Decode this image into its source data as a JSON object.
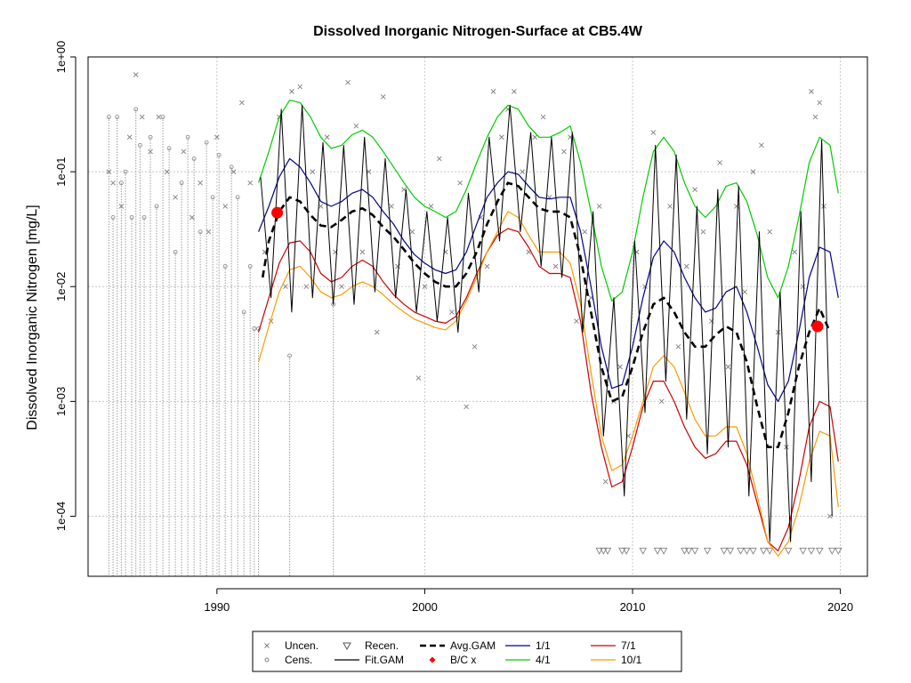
{
  "chart_data": {
    "type": "line",
    "title": "Dissolved Inorganic Nitrogen-Surface at CB5.4W",
    "xlabel": "",
    "ylabel": "Dissolved Inorganic Nitrogen [mg/L]",
    "y_scale": "log",
    "xlim": [
      1983.8,
      2021.3
    ],
    "ylim": [
      3e-05,
      1
    ],
    "grid": true,
    "x_ticks": [
      1990,
      2000,
      2010,
      2020
    ],
    "x_tick_labels": [
      "1990",
      "2000",
      "2010",
      "2020"
    ],
    "y_ticks": [
      1,
      0.1,
      0.01,
      0.001,
      0.0001
    ],
    "y_tick_labels": [
      "1e+00",
      "1e-01",
      "1e-02",
      "1e-03",
      "1e-04"
    ],
    "colors": {
      "uncen": "#808080",
      "cens": "#808080",
      "fit_gam": "#000000",
      "avg_gam": "#000000",
      "bc": "#ff0000",
      "d1_1": "#00008b",
      "d4_1": "#00cc00",
      "d7_1": "#cc0000",
      "d10_1": "#ff9900"
    },
    "legend": {
      "placement": "bottom",
      "entries": [
        {
          "key": "uncen",
          "label": "Uncen.",
          "symbol": "x"
        },
        {
          "key": "recen",
          "label": "Recen.",
          "symbol": "triangle-down"
        },
        {
          "key": "avg",
          "label": "Avg.GAM",
          "symbol": "dashed-line"
        },
        {
          "key": "d1_1",
          "label": "1/1",
          "symbol": "line"
        },
        {
          "key": "d7_1",
          "label": "7/1",
          "symbol": "line"
        },
        {
          "key": "cens",
          "label": "Cens.",
          "symbol": "circle"
        },
        {
          "key": "fit",
          "label": "Fit.GAM",
          "symbol": "line"
        },
        {
          "key": "bc",
          "label": "B/C x",
          "symbol": "diamond"
        },
        {
          "key": "d4_1",
          "label": "4/1",
          "symbol": "line"
        },
        {
          "key": "d10_1",
          "label": "10/1",
          "symbol": "line"
        }
      ]
    },
    "series": [
      {
        "name": "4/1",
        "key": "d4_1",
        "x": [
          1992.0,
          1992.5,
          1993.0,
          1993.5,
          1994.0,
          1994.5,
          1995.0,
          1995.5,
          1996.0,
          1996.5,
          1997.0,
          1997.5,
          1998.0,
          1998.5,
          1999.0,
          1999.5,
          2000.0,
          2000.5,
          2001.0,
          2001.5,
          2002.0,
          2002.5,
          2003.0,
          2003.5,
          2004.0,
          2004.5,
          2005.0,
          2005.5,
          2006.0,
          2006.5,
          2007.0,
          2007.5,
          2008.0,
          2008.5,
          2009.0,
          2009.5,
          2010.0,
          2010.5,
          2011.0,
          2011.5,
          2012.0,
          2012.5,
          2013.0,
          2013.5,
          2014.0,
          2014.5,
          2015.0,
          2015.5,
          2016.0,
          2016.5,
          2017.0,
          2017.5,
          2018.0,
          2018.5,
          2019.0,
          2019.5,
          2019.9
        ],
        "y": [
          0.08,
          0.15,
          0.3,
          0.42,
          0.4,
          0.3,
          0.2,
          0.16,
          0.17,
          0.21,
          0.23,
          0.2,
          0.15,
          0.11,
          0.08,
          0.06,
          0.05,
          0.045,
          0.04,
          0.045,
          0.07,
          0.12,
          0.2,
          0.3,
          0.38,
          0.35,
          0.25,
          0.2,
          0.2,
          0.22,
          0.25,
          0.12,
          0.045,
          0.015,
          0.0075,
          0.009,
          0.02,
          0.06,
          0.15,
          0.2,
          0.15,
          0.08,
          0.05,
          0.04,
          0.05,
          0.075,
          0.08,
          0.055,
          0.028,
          0.012,
          0.008,
          0.015,
          0.04,
          0.12,
          0.2,
          0.17,
          0.065
        ]
      },
      {
        "name": "1/1",
        "key": "d1_1",
        "x": [
          1992.0,
          1992.5,
          1993.0,
          1993.5,
          1994.0,
          1994.5,
          1995.0,
          1995.5,
          1996.0,
          1996.5,
          1997.0,
          1997.5,
          1998.0,
          1998.5,
          1999.0,
          1999.5,
          2000.0,
          2000.5,
          2001.0,
          2001.5,
          2002.0,
          2002.5,
          2003.0,
          2003.5,
          2004.0,
          2004.5,
          2005.0,
          2005.5,
          2006.0,
          2006.5,
          2007.0,
          2007.5,
          2008.0,
          2008.5,
          2009.0,
          2009.5,
          2010.0,
          2010.5,
          2011.0,
          2011.5,
          2012.0,
          2012.5,
          2013.0,
          2013.5,
          2014.0,
          2014.5,
          2015.0,
          2015.5,
          2016.0,
          2016.5,
          2017.0,
          2017.5,
          2018.0,
          2018.5,
          2019.0,
          2019.5,
          2019.9
        ],
        "y": [
          0.03,
          0.05,
          0.09,
          0.13,
          0.11,
          0.08,
          0.055,
          0.05,
          0.055,
          0.065,
          0.07,
          0.06,
          0.045,
          0.035,
          0.025,
          0.019,
          0.016,
          0.014,
          0.013,
          0.014,
          0.02,
          0.035,
          0.06,
          0.08,
          0.1,
          0.095,
          0.075,
          0.06,
          0.058,
          0.06,
          0.06,
          0.03,
          0.01,
          0.003,
          0.0013,
          0.0014,
          0.003,
          0.008,
          0.018,
          0.025,
          0.02,
          0.012,
          0.008,
          0.006,
          0.0065,
          0.009,
          0.01,
          0.006,
          0.003,
          0.0014,
          0.001,
          0.0015,
          0.004,
          0.012,
          0.022,
          0.02,
          0.008
        ]
      },
      {
        "name": "7/1",
        "key": "d7_1",
        "x": [
          1992.0,
          1992.5,
          1993.0,
          1993.5,
          1994.0,
          1994.5,
          1995.0,
          1995.5,
          1996.0,
          1996.5,
          1997.0,
          1997.5,
          1998.0,
          1998.5,
          1999.0,
          1999.5,
          2000.0,
          2000.5,
          2001.0,
          2001.5,
          2002.0,
          2002.5,
          2003.0,
          2003.5,
          2004.0,
          2004.5,
          2005.0,
          2005.5,
          2006.0,
          2006.5,
          2007.0,
          2007.5,
          2008.0,
          2008.5,
          2009.0,
          2009.5,
          2010.0,
          2010.5,
          2011.0,
          2011.5,
          2012.0,
          2012.5,
          2013.0,
          2013.5,
          2014.0,
          2014.5,
          2015.0,
          2015.5,
          2016.0,
          2016.5,
          2017.0,
          2017.5,
          2018.0,
          2018.5,
          2019.0,
          2019.5,
          2019.9
        ],
        "y": [
          0.004,
          0.008,
          0.016,
          0.024,
          0.025,
          0.02,
          0.013,
          0.011,
          0.012,
          0.015,
          0.017,
          0.015,
          0.011,
          0.0085,
          0.007,
          0.006,
          0.0055,
          0.005,
          0.0048,
          0.0055,
          0.008,
          0.013,
          0.02,
          0.028,
          0.032,
          0.03,
          0.022,
          0.015,
          0.013,
          0.013,
          0.012,
          0.005,
          0.0012,
          0.0004,
          0.00018,
          0.0002,
          0.0004,
          0.0009,
          0.0015,
          0.0015,
          0.001,
          0.0006,
          0.0004,
          0.00032,
          0.00035,
          0.00045,
          0.00045,
          0.00028,
          0.00013,
          6e-05,
          5e-05,
          8e-05,
          0.0002,
          0.0006,
          0.001,
          0.0009,
          0.0003
        ]
      },
      {
        "name": "10/1",
        "key": "d10_1",
        "x": [
          1992.0,
          1992.5,
          1993.0,
          1993.5,
          1994.0,
          1994.5,
          1995.0,
          1995.5,
          1996.0,
          1996.5,
          1997.0,
          1997.5,
          1998.0,
          1998.5,
          1999.0,
          1999.5,
          2000.0,
          2000.5,
          2001.0,
          2001.5,
          2002.0,
          2002.5,
          2003.0,
          2003.5,
          2004.0,
          2004.5,
          2005.0,
          2005.5,
          2006.0,
          2006.5,
          2007.0,
          2007.5,
          2008.0,
          2008.5,
          2009.0,
          2009.5,
          2010.0,
          2010.5,
          2011.0,
          2011.5,
          2012.0,
          2012.5,
          2013.0,
          2013.5,
          2014.0,
          2014.5,
          2015.0,
          2015.5,
          2016.0,
          2016.5,
          2017.0,
          2017.5,
          2018.0,
          2018.5,
          2019.0,
          2019.5,
          2019.9
        ],
        "y": [
          0.0022,
          0.0045,
          0.009,
          0.014,
          0.015,
          0.012,
          0.009,
          0.008,
          0.0085,
          0.01,
          0.011,
          0.01,
          0.0085,
          0.007,
          0.006,
          0.0052,
          0.0048,
          0.0044,
          0.0042,
          0.005,
          0.0075,
          0.012,
          0.02,
          0.03,
          0.045,
          0.04,
          0.028,
          0.02,
          0.02,
          0.02,
          0.016,
          0.007,
          0.0018,
          0.0005,
          0.00025,
          0.00028,
          0.0005,
          0.001,
          0.002,
          0.0025,
          0.002,
          0.0012,
          0.0007,
          0.0005,
          0.0005,
          0.0006,
          0.0006,
          0.00035,
          0.00015,
          6e-05,
          4.5e-05,
          6e-05,
          0.00012,
          0.0003,
          0.00055,
          0.0005,
          0.00012
        ]
      },
      {
        "name": "Avg.GAM",
        "key": "avg_gam",
        "x": [
          1992.2,
          1992.5,
          1993.0,
          1993.5,
          1994.0,
          1994.5,
          1995.0,
          1995.5,
          1996.0,
          1996.5,
          1997.0,
          1997.5,
          1998.0,
          1998.5,
          1999.0,
          1999.5,
          2000.0,
          2000.5,
          2001.0,
          2001.5,
          2002.0,
          2002.5,
          2003.0,
          2003.5,
          2004.0,
          2004.5,
          2005.0,
          2005.5,
          2006.0,
          2006.5,
          2007.0,
          2007.5,
          2008.0,
          2008.5,
          2009.0,
          2009.5,
          2010.0,
          2010.5,
          2011.0,
          2011.5,
          2012.0,
          2012.5,
          2013.0,
          2013.5,
          2014.0,
          2014.5,
          2015.0,
          2015.5,
          2016.0,
          2016.5,
          2017.0,
          2017.5,
          2018.0,
          2018.5,
          2019.0,
          2019.5
        ],
        "y": [
          0.012,
          0.025,
          0.045,
          0.06,
          0.055,
          0.042,
          0.034,
          0.033,
          0.038,
          0.045,
          0.048,
          0.042,
          0.033,
          0.027,
          0.021,
          0.016,
          0.013,
          0.011,
          0.01,
          0.01,
          0.013,
          0.02,
          0.035,
          0.055,
          0.08,
          0.075,
          0.06,
          0.048,
          0.045,
          0.045,
          0.04,
          0.018,
          0.006,
          0.002,
          0.001,
          0.0011,
          0.002,
          0.004,
          0.007,
          0.008,
          0.006,
          0.004,
          0.003,
          0.003,
          0.0038,
          0.0045,
          0.004,
          0.0022,
          0.0009,
          0.0004,
          0.0004,
          0.0008,
          0.002,
          0.004,
          0.0065,
          0.004
        ]
      },
      {
        "name": "Fit.GAM",
        "key": "fit_gam",
        "x": [
          1992.1,
          1992.6,
          1993.1,
          1993.6,
          1994.1,
          1994.6,
          1995.1,
          1995.6,
          1996.1,
          1996.6,
          1997.1,
          1997.6,
          1998.1,
          1998.6,
          1999.1,
          1999.6,
          2000.1,
          2000.6,
          2001.1,
          2001.6,
          2002.1,
          2002.6,
          2003.1,
          2003.6,
          2004.1,
          2004.6,
          2005.1,
          2005.6,
          2006.1,
          2006.6,
          2007.1,
          2007.6,
          2008.1,
          2008.6,
          2009.1,
          2009.6,
          2010.1,
          2010.6,
          2011.1,
          2011.6,
          2012.1,
          2012.6,
          2013.1,
          2013.6,
          2014.1,
          2014.6,
          2015.1,
          2015.6,
          2016.1,
          2016.6,
          2017.1,
          2017.6,
          2018.1,
          2018.6,
          2019.1,
          2019.6
        ],
        "y": [
          0.09,
          0.008,
          0.35,
          0.006,
          0.38,
          0.008,
          0.18,
          0.007,
          0.17,
          0.007,
          0.2,
          0.009,
          0.13,
          0.008,
          0.07,
          0.006,
          0.045,
          0.005,
          0.04,
          0.004,
          0.065,
          0.009,
          0.2,
          0.025,
          0.38,
          0.03,
          0.22,
          0.015,
          0.2,
          0.012,
          0.22,
          0.004,
          0.045,
          0.0005,
          0.008,
          0.00015,
          0.025,
          0.0008,
          0.17,
          0.0015,
          0.14,
          0.0007,
          0.05,
          0.00035,
          0.07,
          0.0004,
          0.075,
          0.00015,
          0.03,
          6e-05,
          0.009,
          6e-05,
          0.045,
          0.0002,
          0.19,
          0.0001
        ]
      }
    ],
    "bc_points": {
      "x": [
        1992.9,
        2018.9
      ],
      "y": [
        0.044,
        0.0045
      ]
    },
    "uncensored_points": {
      "x": [
        1984.8,
        1985.0,
        1985.4,
        1985.8,
        1986.1,
        1986.4,
        1986.8,
        1987.2,
        1987.6,
        1988.0,
        1988.4,
        1988.8,
        1989.2,
        1989.6,
        1990.0,
        1990.4,
        1990.8,
        1991.2,
        1991.6,
        1992.3,
        1992.6,
        1993.0,
        1993.3,
        1993.6,
        1994.0,
        1994.3,
        1994.6,
        1995.0,
        1995.3,
        1995.7,
        1996.0,
        1996.3,
        1996.7,
        1997.0,
        1997.3,
        1997.7,
        1998.0,
        1998.4,
        1998.7,
        1999.0,
        1999.4,
        1999.7,
        2000.0,
        2000.3,
        2000.7,
        2001.0,
        2001.3,
        2001.7,
        2002.0,
        2002.4,
        2002.7,
        2003.0,
        2003.3,
        2003.7,
        2004.0,
        2004.3,
        2004.7,
        2005.0,
        2005.3,
        2005.7,
        2006.0,
        2006.3,
        2006.7,
        2007.0,
        2007.3,
        2007.7,
        2008.0,
        2008.4,
        2008.7,
        2009.1,
        2009.4,
        2009.8,
        2010.2,
        2010.6,
        2011.0,
        2011.4,
        2011.8,
        2012.2,
        2012.6,
        2013.0,
        2013.4,
        2013.8,
        2014.2,
        2014.6,
        2015.0,
        2015.4,
        2015.8,
        2016.2,
        2016.6,
        2017.0,
        2017.4,
        2017.8,
        2018.2,
        2018.6,
        2018.8,
        2019.0,
        2019.2,
        2019.5
      ],
      "y": [
        0.1,
        0.08,
        0.05,
        0.2,
        0.7,
        0.3,
        0.15,
        0.3,
        0.1,
        0.06,
        0.15,
        0.04,
        0.08,
        0.03,
        0.2,
        0.05,
        0.1,
        0.4,
        0.08,
        0.02,
        0.005,
        0.3,
        0.01,
        0.5,
        0.55,
        0.01,
        0.1,
        0.05,
        0.2,
        0.02,
        0.01,
        0.6,
        0.25,
        0.02,
        0.1,
        0.004,
        0.45,
        0.05,
        0.015,
        0.07,
        0.03,
        0.0016,
        0.01,
        0.05,
        0.13,
        0.02,
        0.006,
        0.08,
        0.0009,
        0.003,
        0.04,
        0.015,
        0.5,
        0.2,
        0.35,
        0.5,
        0.1,
        0.02,
        0.2,
        0.3,
        0.06,
        0.015,
        0.15,
        0.2,
        0.005,
        0.03,
        0.008,
        0.05,
        0.0002,
        0.001,
        0.002,
        0.0005,
        0.02,
        0.01,
        0.22,
        0.001,
        0.05,
        0.003,
        0.015,
        0.07,
        0.03,
        0.005,
        0.12,
        0.002,
        0.05,
        0.009,
        0.1,
        0.17,
        0.03,
        0.004,
        0.0004,
        0.02,
        0.01,
        0.5,
        0.3,
        0.4,
        0.05,
        0.0001
      ]
    },
    "censored_points": {
      "x": [
        1984.8,
        1985.0,
        1985.2,
        1985.4,
        1985.6,
        1985.9,
        1986.1,
        1986.3,
        1986.5,
        1986.8,
        1987.1,
        1987.4,
        1987.7,
        1988.0,
        1988.3,
        1988.6,
        1988.9,
        1989.2,
        1989.5,
        1989.8,
        1990.1,
        1990.4,
        1990.7,
        1991.0,
        1991.3,
        1991.6,
        1991.8,
        1992.0,
        1993.5,
        1995.6
      ],
      "y": [
        0.3,
        0.04,
        0.3,
        0.08,
        0.1,
        0.04,
        0.35,
        0.17,
        0.04,
        0.2,
        0.05,
        0.3,
        0.16,
        0.02,
        0.08,
        0.2,
        0.13,
        0.03,
        0.18,
        0.06,
        0.14,
        0.015,
        0.11,
        0.06,
        0.006,
        0.015,
        0.0043,
        0.0043,
        0.0025,
        0.007
      ]
    },
    "recensored_points": {
      "x": [
        2008.4,
        2008.6,
        2008.8,
        2009.5,
        2009.7,
        2010.5,
        2011.2,
        2011.5,
        2012.5,
        2012.7,
        2013.0,
        2013.6,
        2014.4,
        2014.7,
        2015.2,
        2015.5,
        2015.8,
        2016.3,
        2016.6,
        2017.5,
        2018.2,
        2018.6,
        2019.0,
        2019.6,
        2019.9
      ],
      "y": [
        5e-05,
        5e-05,
        5e-05,
        5e-05,
        5e-05,
        5e-05,
        5e-05,
        5e-05,
        5e-05,
        5e-05,
        5e-05,
        5e-05,
        5e-05,
        5e-05,
        5e-05,
        5e-05,
        5e-05,
        5e-05,
        5e-05,
        5e-05,
        5e-05,
        5e-05,
        5e-05,
        5e-05,
        5e-05
      ]
    }
  }
}
